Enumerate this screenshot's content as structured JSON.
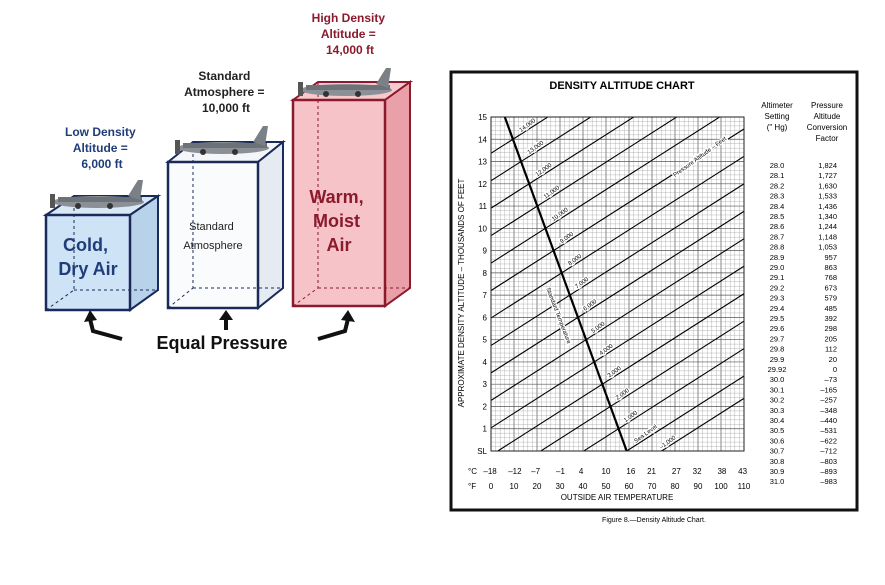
{
  "boxes": [
    {
      "label_lines": [
        "Low Density",
        "Altitude =",
        "6,000 ft"
      ],
      "body_lines": [
        "Cold,",
        "Dry Air"
      ],
      "label_color": "#1f3d78",
      "body_color": "#1f3d78"
    },
    {
      "label_lines": [
        "Standard",
        "Atmosphere =",
        "10,000 ft"
      ],
      "body_lines": [
        "Standard",
        "Atmosphere"
      ],
      "label_color": "#222222",
      "body_color": "#222222"
    },
    {
      "label_lines": [
        "High Density",
        "Altitude =",
        "14,000 ft"
      ],
      "body_lines": [
        "Warm,",
        "Moist",
        "Air"
      ],
      "label_color": "#8a1a2c",
      "body_color": "#8a1a2c"
    }
  ],
  "equal_pressure": "Equal Pressure",
  "chart_data": {
    "type": "line",
    "title": "DENSITY ALTITUDE CHART",
    "ylabel": "APPROXIMATE DENSITY ALTITUDE – THOUSANDS OF FEET",
    "xlabel": "OUTSIDE AIR TEMPERATURE",
    "y_ticks": [
      "SL",
      "1",
      "2",
      "3",
      "4",
      "5",
      "6",
      "7",
      "8",
      "9",
      "10",
      "11",
      "12",
      "13",
      "14",
      "15"
    ],
    "ylim": [
      0,
      15
    ],
    "celsius_ticks": [
      "–18",
      "–12",
      "–7",
      "–1",
      "4",
      "10",
      "16",
      "21",
      "27",
      "32",
      "38",
      "43"
    ],
    "fahrenheit_ticks": [
      "0",
      "10",
      "20",
      "30",
      "40",
      "50",
      "60",
      "70",
      "80",
      "90",
      "100",
      "110"
    ],
    "xlim_f": [
      0,
      110
    ],
    "unit_c": "°C",
    "unit_f": "°F",
    "grid": true,
    "pressure_altitude_series_label": "Pressure Altitude – Feet",
    "standard_temperature_label": "Standard Temperature",
    "standard_temperature_line": {
      "x_f": [
        59,
        6
      ],
      "y": [
        0,
        15
      ]
    },
    "pressure_altitude_lines": [
      {
        "label": "Sea Level",
        "value": 0
      },
      {
        "label": "1,000",
        "value": 1000
      },
      {
        "label": "2,000",
        "value": 2000
      },
      {
        "label": "3,000",
        "value": 3000
      },
      {
        "label": "4,000",
        "value": 4000
      },
      {
        "label": "5,000",
        "value": 5000
      },
      {
        "label": "6,000",
        "value": 6000
      },
      {
        "label": "7,000",
        "value": 7000
      },
      {
        "label": "8,000",
        "value": 8000
      },
      {
        "label": "9,000",
        "value": 9000
      },
      {
        "label": "10,000",
        "value": 10000
      },
      {
        "label": "11,000",
        "value": 11000
      },
      {
        "label": "12,000",
        "value": 12000
      },
      {
        "label": "13,000",
        "value": 13000
      },
      {
        "label": "14,000",
        "value": 14000
      },
      {
        "label": "–1,000",
        "value": -1000
      }
    ],
    "table": {
      "col1_header": [
        "Altimeter",
        "Setting",
        "(\" Hg)"
      ],
      "col2_header": [
        "Pressure",
        "Altitude",
        "Conversion",
        "Factor"
      ],
      "rows": [
        [
          "28.0",
          "1,824"
        ],
        [
          "28.1",
          "1,727"
        ],
        [
          "28.2",
          "1,630"
        ],
        [
          "28.3",
          "1,533"
        ],
        [
          "28.4",
          "1,436"
        ],
        [
          "28.5",
          "1,340"
        ],
        [
          "28.6",
          "1,244"
        ],
        [
          "28.7",
          "1,148"
        ],
        [
          "28.8",
          "1,053"
        ],
        [
          "28.9",
          "957"
        ],
        [
          "29.0",
          "863"
        ],
        [
          "29.1",
          "768"
        ],
        [
          "29.2",
          "673"
        ],
        [
          "29.3",
          "579"
        ],
        [
          "29.4",
          "485"
        ],
        [
          "29.5",
          "392"
        ],
        [
          "29.6",
          "298"
        ],
        [
          "29.7",
          "205"
        ],
        [
          "29.8",
          "112"
        ],
        [
          "29.9",
          "20"
        ],
        [
          "29.92",
          "0"
        ],
        [
          "30.0",
          "–73"
        ],
        [
          "30.1",
          "–165"
        ],
        [
          "30.2",
          "–257"
        ],
        [
          "30.3",
          "–348"
        ],
        [
          "30.4",
          "–440"
        ],
        [
          "30.5",
          "–531"
        ],
        [
          "30.6",
          "–622"
        ],
        [
          "30.7",
          "–712"
        ],
        [
          "30.8",
          "–803"
        ],
        [
          "30.9",
          "–893"
        ],
        [
          "31.0",
          "–983"
        ]
      ]
    },
    "caption": "Figure 8.—Density Altitude Chart."
  }
}
